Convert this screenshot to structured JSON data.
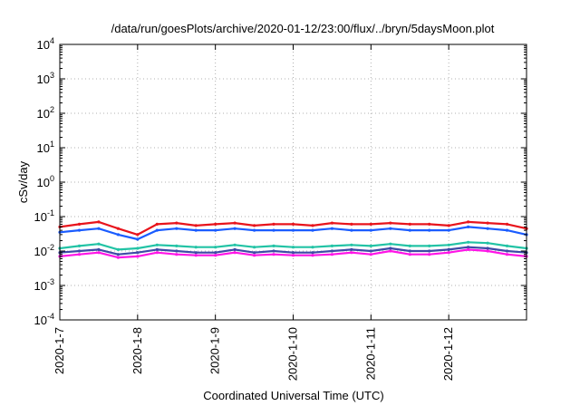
{
  "chart_data": {
    "type": "line",
    "title": "/data/run/goesPlots/archive/2020-01-12/23:00/flux/../bryn/5daysMoon.plot",
    "xlabel": "Coordinated Universal Time (UTC)",
    "ylabel": "cSv/day",
    "y_scale": "log",
    "ylim": [
      0.0001,
      10000
    ],
    "y_ticks": [
      {
        "base": "10",
        "exp": "4"
      },
      {
        "base": "10",
        "exp": "3"
      },
      {
        "base": "10",
        "exp": "2"
      },
      {
        "base": "10",
        "exp": "1"
      },
      {
        "base": "10",
        "exp": "0"
      },
      {
        "base": "10",
        "exp": "-1"
      },
      {
        "base": "10",
        "exp": "-2"
      },
      {
        "base": "10",
        "exp": "-3"
      },
      {
        "base": "10",
        "exp": "-4"
      }
    ],
    "xlim": [
      "2020-01-07",
      "2020-01-13"
    ],
    "x_ticks": [
      "2020-1-7",
      "2020-1-8",
      "2020-1-9",
      "2020-1-10",
      "2020-1-11",
      "2020-1-12"
    ],
    "grid": true,
    "legend": "none",
    "series": [
      {
        "color": "#e8141c",
        "x": [
          "2020-01-07",
          "2020-01-07T06",
          "2020-01-07T12",
          "2020-01-07T18",
          "2020-01-08",
          "2020-01-08T06",
          "2020-01-08T12",
          "2020-01-08T18",
          "2020-01-09",
          "2020-01-09T06",
          "2020-01-09T12",
          "2020-01-09T18",
          "2020-01-10",
          "2020-01-10T06",
          "2020-01-10T12",
          "2020-01-10T18",
          "2020-01-11",
          "2020-01-11T06",
          "2020-01-11T12",
          "2020-01-11T18",
          "2020-01-12",
          "2020-01-12T06",
          "2020-01-12T12",
          "2020-01-12T18",
          "2020-01-13"
        ],
        "values": [
          0.05,
          0.06,
          0.07,
          0.045,
          0.03,
          0.06,
          0.065,
          0.055,
          0.06,
          0.065,
          0.055,
          0.06,
          0.06,
          0.055,
          0.065,
          0.06,
          0.06,
          0.065,
          0.06,
          0.06,
          0.055,
          0.07,
          0.065,
          0.06,
          0.045
        ]
      },
      {
        "color": "#1a5cff",
        "x": [
          "2020-01-07",
          "2020-01-07T06",
          "2020-01-07T12",
          "2020-01-07T18",
          "2020-01-08",
          "2020-01-08T06",
          "2020-01-08T12",
          "2020-01-08T18",
          "2020-01-09",
          "2020-01-09T06",
          "2020-01-09T12",
          "2020-01-09T18",
          "2020-01-10",
          "2020-01-10T06",
          "2020-01-10T12",
          "2020-01-10T18",
          "2020-01-11",
          "2020-01-11T06",
          "2020-01-11T12",
          "2020-01-11T18",
          "2020-01-12",
          "2020-01-12T06",
          "2020-01-12T12",
          "2020-01-12T18",
          "2020-01-13"
        ],
        "values": [
          0.035,
          0.04,
          0.045,
          0.03,
          0.022,
          0.04,
          0.045,
          0.04,
          0.04,
          0.045,
          0.04,
          0.04,
          0.04,
          0.04,
          0.045,
          0.04,
          0.04,
          0.045,
          0.04,
          0.04,
          0.04,
          0.05,
          0.045,
          0.04,
          0.03
        ]
      },
      {
        "color": "#22c3a5",
        "x": [
          "2020-01-07",
          "2020-01-07T06",
          "2020-01-07T12",
          "2020-01-07T18",
          "2020-01-08",
          "2020-01-08T06",
          "2020-01-08T12",
          "2020-01-08T18",
          "2020-01-09",
          "2020-01-09T06",
          "2020-01-09T12",
          "2020-01-09T18",
          "2020-01-10",
          "2020-01-10T06",
          "2020-01-10T12",
          "2020-01-10T18",
          "2020-01-11",
          "2020-01-11T06",
          "2020-01-11T12",
          "2020-01-11T18",
          "2020-01-12",
          "2020-01-12T06",
          "2020-01-12T12",
          "2020-01-12T18",
          "2020-01-13"
        ],
        "values": [
          0.012,
          0.014,
          0.016,
          0.011,
          0.012,
          0.015,
          0.014,
          0.013,
          0.013,
          0.015,
          0.013,
          0.014,
          0.013,
          0.013,
          0.014,
          0.015,
          0.014,
          0.016,
          0.014,
          0.014,
          0.015,
          0.018,
          0.017,
          0.014,
          0.012
        ]
      },
      {
        "color": "#3e4aa6",
        "x": [
          "2020-01-07",
          "2020-01-07T06",
          "2020-01-07T12",
          "2020-01-07T18",
          "2020-01-08",
          "2020-01-08T06",
          "2020-01-08T12",
          "2020-01-08T18",
          "2020-01-09",
          "2020-01-09T06",
          "2020-01-09T12",
          "2020-01-09T18",
          "2020-01-10",
          "2020-01-10T06",
          "2020-01-10T12",
          "2020-01-10T18",
          "2020-01-11",
          "2020-01-11T06",
          "2020-01-11T12",
          "2020-01-11T18",
          "2020-01-12",
          "2020-01-12T06",
          "2020-01-12T12",
          "2020-01-12T18",
          "2020-01-13"
        ],
        "values": [
          0.009,
          0.01,
          0.011,
          0.008,
          0.009,
          0.011,
          0.01,
          0.009,
          0.009,
          0.011,
          0.009,
          0.01,
          0.009,
          0.009,
          0.01,
          0.011,
          0.01,
          0.012,
          0.01,
          0.01,
          0.011,
          0.013,
          0.012,
          0.01,
          0.009
        ]
      },
      {
        "color": "#ff14e6",
        "x": [
          "2020-01-07",
          "2020-01-07T06",
          "2020-01-07T12",
          "2020-01-07T18",
          "2020-01-08",
          "2020-01-08T06",
          "2020-01-08T12",
          "2020-01-08T18",
          "2020-01-09",
          "2020-01-09T06",
          "2020-01-09T12",
          "2020-01-09T18",
          "2020-01-10",
          "2020-01-10T06",
          "2020-01-10T12",
          "2020-01-10T18",
          "2020-01-11",
          "2020-01-11T06",
          "2020-01-11T12",
          "2020-01-11T18",
          "2020-01-12",
          "2020-01-12T06",
          "2020-01-12T12",
          "2020-01-12T18",
          "2020-01-13"
        ],
        "values": [
          0.007,
          0.008,
          0.009,
          0.0065,
          0.007,
          0.009,
          0.008,
          0.0075,
          0.0075,
          0.009,
          0.0075,
          0.008,
          0.0075,
          0.0075,
          0.008,
          0.009,
          0.008,
          0.01,
          0.008,
          0.008,
          0.009,
          0.011,
          0.01,
          0.008,
          0.007
        ]
      }
    ]
  }
}
